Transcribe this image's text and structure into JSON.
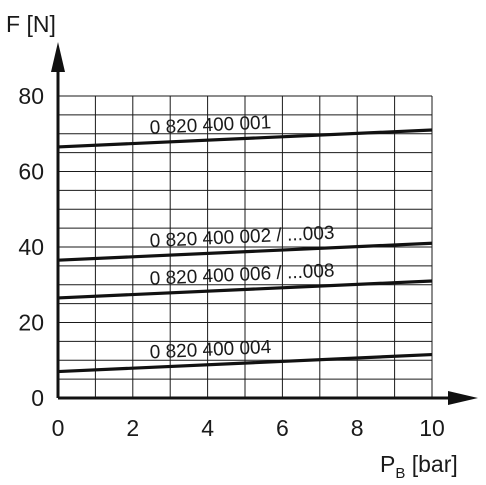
{
  "chart_data": {
    "type": "line",
    "title": "",
    "ylabel": "F [N]",
    "xlabel_main": "P",
    "xlabel_sub": "B",
    "xlabel_unit": " [bar]",
    "xlim": [
      0,
      10
    ],
    "ylim": [
      0,
      80
    ],
    "x_ticks": [
      0,
      2,
      4,
      6,
      8,
      10
    ],
    "y_ticks": [
      0,
      20,
      40,
      60,
      80
    ],
    "x_grid_step": 1,
    "y_grid_step": 5,
    "grid": true,
    "series": [
      {
        "label": "0 820 400 001",
        "x": [
          0,
          10
        ],
        "y": [
          66.5,
          71
        ]
      },
      {
        "label": "0 820 400 002 / ...003",
        "x": [
          0,
          10
        ],
        "y": [
          36.5,
          41
        ]
      },
      {
        "label": "0 820 400 006 / ...008",
        "x": [
          0,
          10
        ],
        "y": [
          26.5,
          31
        ]
      },
      {
        "label": "0 820 400 004",
        "x": [
          0,
          10
        ],
        "y": [
          7,
          11.5
        ]
      }
    ]
  }
}
